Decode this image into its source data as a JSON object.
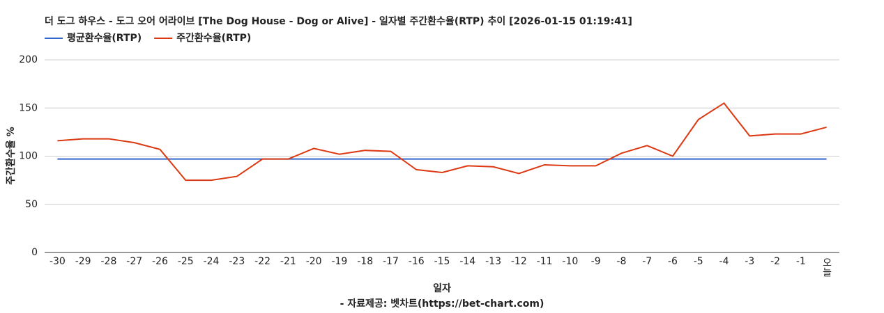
{
  "chart_data": {
    "type": "line",
    "title": "더 도그 하우스 - 도그 오어 어라이브 [The Dog House - Dog or Alive] - 일자별 주간환수율(RTP) 추이 [2026-01-15 01:19:41]",
    "x_label": "일자",
    "y_label": "주간환수율 %",
    "source": "- 자료제공: 벳차트(https://bet-chart.com)",
    "categories": [
      "-30",
      "-29",
      "-28",
      "-27",
      "-26",
      "-25",
      "-24",
      "-23",
      "-22",
      "-21",
      "-20",
      "-19",
      "-18",
      "-17",
      "-16",
      "-15",
      "-14",
      "-13",
      "-12",
      "-11",
      "-10",
      "-9",
      "-8",
      "-7",
      "-6",
      "-5",
      "-4",
      "-3",
      "-2",
      "-1",
      "오늘"
    ],
    "series": [
      {
        "name": "평균환수율(RTP)",
        "color": "#3366cc",
        "values": [
          97,
          97,
          97,
          97,
          97,
          97,
          97,
          97,
          97,
          97,
          97,
          97,
          97,
          97,
          97,
          97,
          97,
          97,
          97,
          97,
          97,
          97,
          97,
          97,
          97,
          97,
          97,
          97,
          97,
          97,
          97
        ]
      },
      {
        "name": "주간환수율(RTP)",
        "color": "#dc3912",
        "values": [
          116,
          118,
          118,
          114,
          107,
          75,
          75,
          79,
          97,
          97,
          108,
          102,
          106,
          105,
          86,
          83,
          90,
          89,
          82,
          91,
          90,
          90,
          103,
          111,
          100,
          138,
          155,
          121,
          123,
          123,
          130
        ]
      }
    ],
    "ylim": [
      0,
      200
    ],
    "yticks": [
      0,
      50,
      100,
      150,
      200
    ],
    "grid": true
  }
}
